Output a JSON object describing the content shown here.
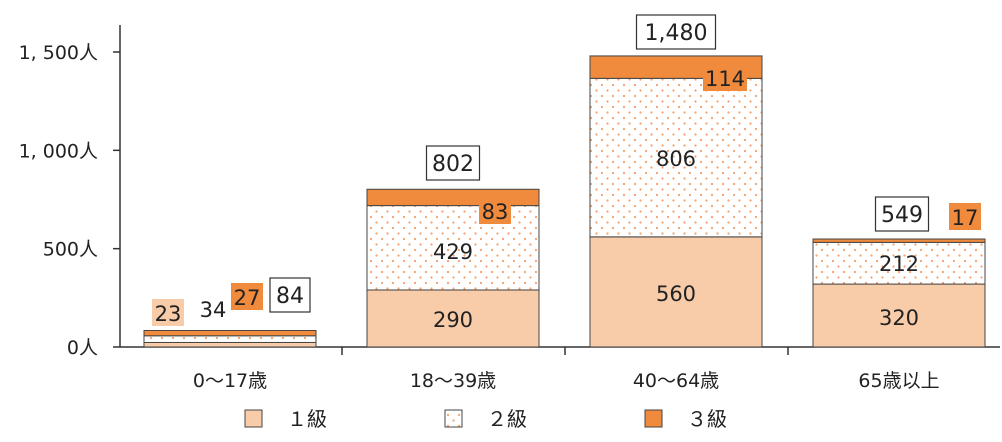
{
  "chart_data": {
    "type": "bar",
    "stacked": true,
    "categories": [
      "0～17歳",
      "18～39歳",
      "40～64歳",
      "65歳以上"
    ],
    "series": [
      {
        "name": "１級",
        "values": [
          23,
          290,
          560,
          320
        ],
        "color": "#f8cba9",
        "pattern": "solid"
      },
      {
        "name": "２級",
        "values": [
          34,
          429,
          806,
          212
        ],
        "color": "#ffffff",
        "pattern": "dots",
        "dot_color": "#f4a06a"
      },
      {
        "name": "３級",
        "values": [
          27,
          83,
          114,
          17
        ],
        "color": "#f08a3c",
        "pattern": "solid"
      }
    ],
    "totals": [
      84,
      802,
      1480,
      549
    ],
    "total_labels": [
      "84",
      "802",
      "1,480",
      "549"
    ],
    "value_labels": [
      [
        "23",
        "290",
        "560",
        "320"
      ],
      [
        "34",
        "429",
        "806",
        "212"
      ],
      [
        "27",
        "83",
        "114",
        "17"
      ]
    ],
    "y_ticks": [
      0,
      500,
      1000,
      1500
    ],
    "y_tick_labels": [
      "0人",
      "500人",
      "1, 000人",
      "1, 500人"
    ],
    "ylim": [
      0,
      1500
    ],
    "grid": false,
    "legend_position": "bottom",
    "title": "",
    "xlabel": "",
    "ylabel": ""
  }
}
